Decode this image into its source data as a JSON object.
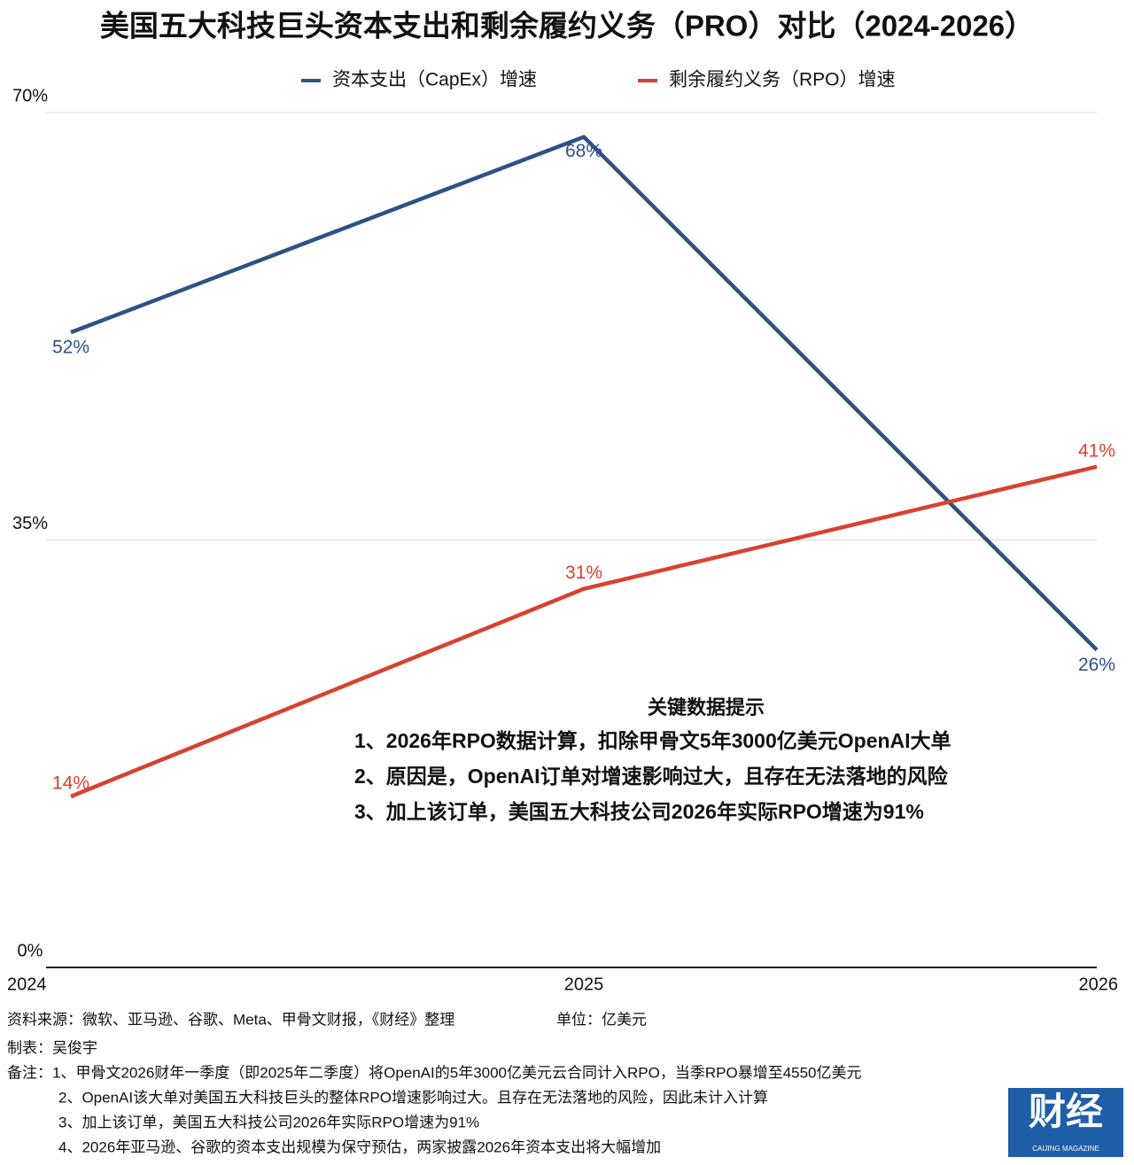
{
  "chart_data": {
    "type": "line",
    "title": "美国五大科技巨头资本支出和剩余履约义务（PRO）对比（2024-2026）",
    "categories": [
      "2024",
      "2025",
      "2026"
    ],
    "series": [
      {
        "name": "资本支出（CapEx）增速",
        "color": "#2d5286",
        "values": [
          52,
          68,
          26
        ],
        "value_labels": [
          "52%",
          "68%",
          "26%"
        ]
      },
      {
        "name": "剩余履约义务（RPO）增速",
        "color": "#d9412f",
        "values": [
          14,
          31,
          41
        ],
        "value_labels": [
          "14%",
          "31%",
          "41%"
        ]
      }
    ],
    "ylim": [
      0,
      70
    ],
    "yticks": [
      {
        "value": 0,
        "label": "0%"
      },
      {
        "value": 35,
        "label": "35%"
      },
      {
        "value": 70,
        "label": "70%"
      }
    ],
    "grid": true,
    "legend": "top",
    "annotation": {
      "title": "关键数据提示",
      "lines": [
        "1、2026年RPO数据计算，扣除甲骨文5年3000亿美元OpenAI大单",
        "2、原因是，OpenAI订单对增速影响过大，且存在无法落地的风险",
        "3、加上该订单，美国五大科技公司2026年实际RPO增速为91%"
      ]
    },
    "source": "资料来源：微软、亚马逊、谷歌、Meta、甲骨文财报，《财经》整理",
    "unit": "单位：亿美元",
    "author": "制表：吴俊宇",
    "notes": [
      "备注：1、甲骨文2026财年一季度（即2025年二季度）将OpenAI的5年3000亿美元云合同计入RPO，当季RPO暴增至4550亿美元",
      "2、OpenAI该大单对美国五大科技巨头的整体RPO增速影响过大。且存在无法落地的风险，因此未计入计算",
      "3、加上该订单，美国五大科技公司2026年实际RPO增速为91%",
      "4、2026年亚马逊、谷歌的资本支出规模为保守预估，两家披露2026年资本支出将大幅增加"
    ],
    "logo": {
      "text": "财经",
      "subtext": "CAIJING MAGAZINE"
    }
  }
}
